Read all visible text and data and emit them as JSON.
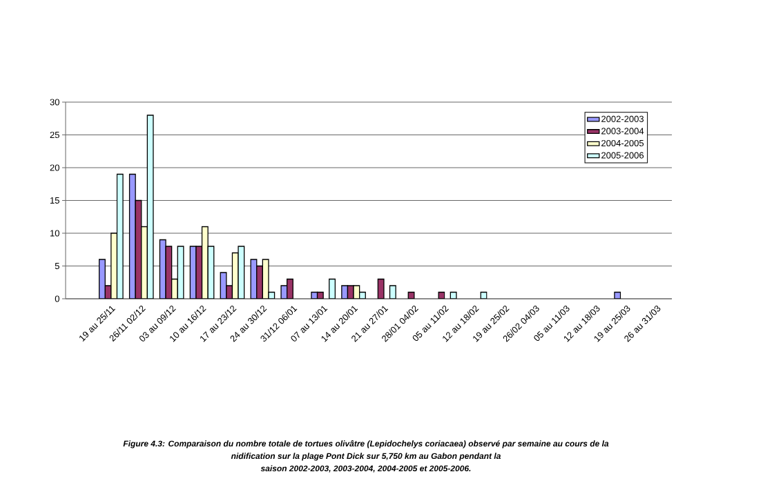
{
  "chart_data": {
    "type": "bar",
    "categories": [
      null,
      "19 au 25/11",
      "26/11  02/12",
      "03 au 09/12",
      "10 au 16/12",
      "17 au 23/12",
      "24 au 30/12",
      "31/12  06/01",
      "07 au 13/01",
      "14 au 20/01",
      "21 au 27/01",
      "28/01  04/02",
      "05 au 11/02",
      "12 au 18/02",
      "19 au 25/02",
      "26/02  04/03",
      "05 au 11/03",
      "12 au 18/03",
      "19 au 25/03",
      "26 au 31/03"
    ],
    "series": [
      {
        "name": "2002-2003",
        "color": "#9999ff",
        "values": [
          null,
          6,
          19,
          9,
          8,
          4,
          6,
          2,
          1,
          2,
          null,
          null,
          null,
          null,
          null,
          null,
          null,
          null,
          1,
          null
        ]
      },
      {
        "name": "2003-2004",
        "color": "#993366",
        "values": [
          null,
          2,
          15,
          8,
          8,
          2,
          5,
          3,
          1,
          2,
          3,
          1,
          1,
          null,
          null,
          null,
          null,
          null,
          null,
          null
        ]
      },
      {
        "name": "2004-2005",
        "color": "#ffffcc",
        "values": [
          null,
          10,
          11,
          3,
          11,
          7,
          6,
          null,
          null,
          2,
          null,
          null,
          null,
          null,
          null,
          null,
          null,
          null,
          null,
          null
        ]
      },
      {
        "name": "2005-2006",
        "color": "#ccffff",
        "values": [
          null,
          19,
          28,
          8,
          8,
          8,
          1,
          null,
          3,
          1,
          2,
          null,
          1,
          1,
          null,
          null,
          null,
          null,
          null,
          null
        ]
      }
    ],
    "ylim": [
      0,
      30
    ],
    "yticks": [
      0,
      5,
      10,
      15,
      20,
      25,
      30
    ],
    "grid": "y",
    "legend": "top right",
    "annotations": [
      "Figure 4.3: Comparaison du nombre totale de tortues olivâtre (Lepidochelys coriacaea) observé par semaine au cours de la",
      "nidification sur la plage Pont Dick sur 5,750 km au Gabon pendant la",
      "saison 2002-2003, 2003-2004, 2004-2005 et 2005-2006."
    ]
  }
}
